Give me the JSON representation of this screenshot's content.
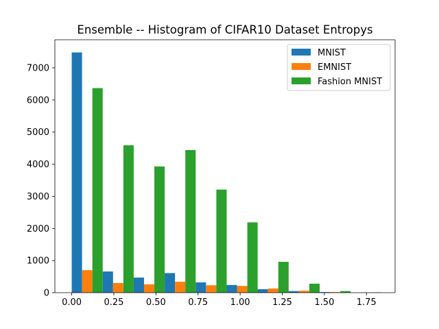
{
  "chart_data": {
    "type": "bar",
    "title": "Ensemble -- Histogram of CIFAR10 Dataset Entropys",
    "xlabel": "",
    "ylabel": "",
    "xlim": [
      -0.1,
      1.92
    ],
    "ylim": [
      0,
      7875
    ],
    "xticks": [
      0.0,
      0.25,
      0.5,
      0.75,
      1.0,
      1.25,
      1.5,
      1.75
    ],
    "xtick_labels": [
      "0.00",
      "0.25",
      "0.50",
      "0.75",
      "1.00",
      "1.25",
      "1.50",
      "1.75"
    ],
    "yticks": [
      0,
      1000,
      2000,
      3000,
      4000,
      5000,
      6000,
      7000
    ],
    "ytick_labels": [
      "0",
      "1000",
      "2000",
      "3000",
      "4000",
      "5000",
      "6000",
      "7000"
    ],
    "bin_edges": [
      0.0,
      0.184,
      0.368,
      0.552,
      0.736,
      0.92,
      1.104,
      1.288,
      1.472,
      1.656,
      1.84
    ],
    "legend_position": "top-right",
    "grid": false,
    "series": [
      {
        "name": "MNIST",
        "color": "#1f77b4",
        "values": [
          7480,
          660,
          470,
          610,
          320,
          240,
          110,
          50,
          20,
          0
        ]
      },
      {
        "name": "EMNIST",
        "color": "#ff7f0e",
        "values": [
          700,
          300,
          260,
          340,
          230,
          210,
          130,
          60,
          20,
          10
        ]
      },
      {
        "name": "Fashion MNIST",
        "color": "#2ca02c",
        "values": [
          6370,
          4590,
          3930,
          4440,
          3210,
          2190,
          960,
          280,
          50,
          10
        ]
      }
    ]
  }
}
